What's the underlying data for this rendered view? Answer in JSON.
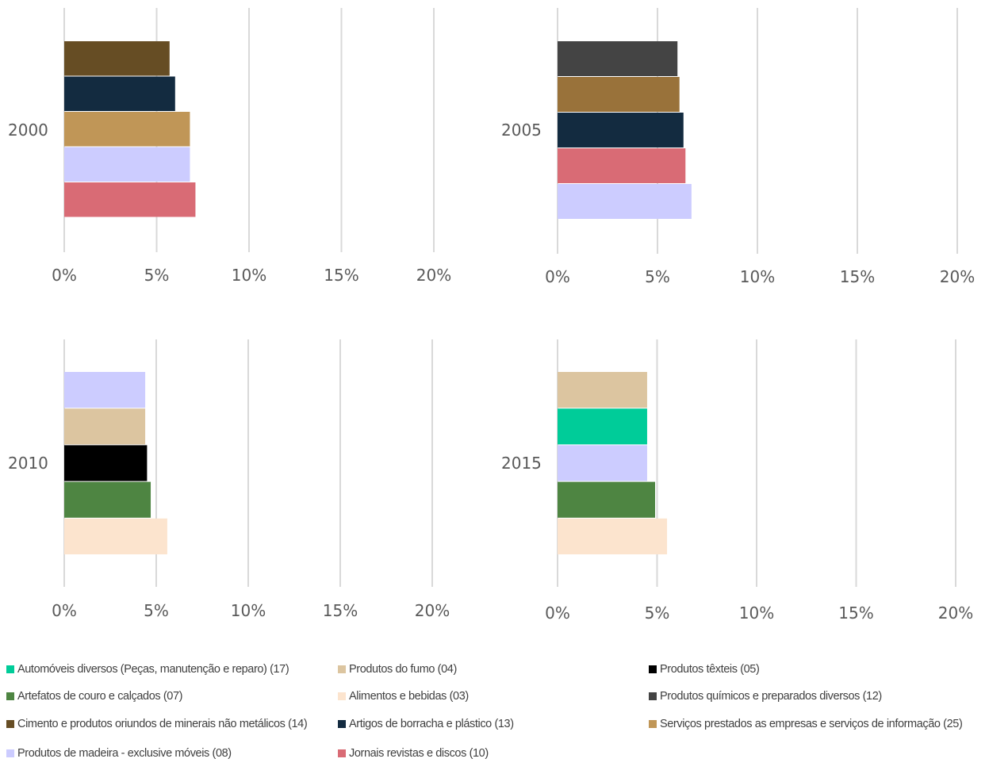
{
  "chart_data": [
    {
      "type": "bar",
      "orientation": "horizontal",
      "category": "2000",
      "xlim": [
        0,
        0.2
      ],
      "x_ticks": [
        "0%",
        "5%",
        "10%",
        "15%",
        "20%"
      ],
      "grid": true,
      "series": [
        {
          "name": "Cimento e produtos oriundos de minerais não metálicos (14)",
          "value": 0.057
        },
        {
          "name": "Artigos de borracha e plástico (13)",
          "value": 0.06
        },
        {
          "name": "Serviços prestados as empresas e serviços de informação (25)",
          "value": 0.068
        },
        {
          "name": "Produtos de madeira - exclusive móveis (08)",
          "value": 0.068
        },
        {
          "name": "Jornais revistas e discos (10)",
          "value": 0.071
        }
      ]
    },
    {
      "type": "bar",
      "orientation": "horizontal",
      "category": "2005",
      "xlim": [
        0,
        0.2
      ],
      "x_ticks": [
        "0%",
        "5%",
        "10%",
        "15%",
        "20%"
      ],
      "grid": true,
      "series": [
        {
          "name": "Produtos químicos e preparados diversos (12)",
          "value": 0.06
        },
        {
          "name": "Serviços prestados as empresas e serviços de informação (25)",
          "value": 0.061
        },
        {
          "name": "Artigos de borracha e plástico (13)",
          "value": 0.063
        },
        {
          "name": "Jornais revistas e discos (10)",
          "value": 0.064
        },
        {
          "name": "Produtos de madeira - exclusive móveis (08)",
          "value": 0.067
        }
      ]
    },
    {
      "type": "bar",
      "orientation": "horizontal",
      "category": "2010",
      "xlim": [
        0,
        0.2
      ],
      "x_ticks": [
        "0%",
        "5%",
        "10%",
        "15%",
        "20%"
      ],
      "grid": true,
      "series": [
        {
          "name": "Produtos de madeira - exclusive móveis (08)",
          "value": 0.044
        },
        {
          "name": "Produtos do fumo (04)",
          "value": 0.044
        },
        {
          "name": "Produtos têxteis (05)",
          "value": 0.045
        },
        {
          "name": "Artefatos de couro e calçados (07)",
          "value": 0.047
        },
        {
          "name": "Alimentos e bebidas (03)",
          "value": 0.056
        }
      ]
    },
    {
      "type": "bar",
      "orientation": "horizontal",
      "category": "2015",
      "xlim": [
        0,
        0.2
      ],
      "x_ticks": [
        "0%",
        "5%",
        "10%",
        "15%",
        "20%"
      ],
      "grid": true,
      "series": [
        {
          "name": "Produtos do fumo (04)",
          "value": 0.045
        },
        {
          "name": "Automóveis diversos (Peças, manutenção e reparo) (17)",
          "value": 0.045
        },
        {
          "name": "Produtos de madeira - exclusive móveis (08)",
          "value": 0.045
        },
        {
          "name": "Artefatos de couro e calçados (07)",
          "value": 0.049
        },
        {
          "name": "Alimentos e bebidas (03)",
          "value": 0.055
        }
      ]
    }
  ],
  "legend": [
    {
      "label": "Automóveis diversos (Peças, manutenção e reparo) (17)",
      "color": "#00CC99"
    },
    {
      "label": "Produtos do fumo (04)",
      "color": "#DCC5A0"
    },
    {
      "label": "Produtos têxteis (05)",
      "color": "#000000"
    },
    {
      "label": "Artefatos de couro e calçados (07)",
      "color": "#4E8542"
    },
    {
      "label": "Alimentos e bebidas (03)",
      "color": "#FCE4CE"
    },
    {
      "label": "Produtos químicos e preparados diversos (12)",
      "color": "#444444"
    },
    {
      "label": "Cimento e produtos oriundos de minerais não metálicos (14)",
      "color": "#664D24"
    },
    {
      "label": "Artigos de borracha e plástico (13)",
      "color": "#132B40"
    },
    {
      "label": "Serviços prestados as empresas e serviços de informação (25)",
      "color": "#C09657"
    },
    {
      "label": "Produtos de madeira - exclusive móveis (08)",
      "color": "#CCCCFF"
    },
    {
      "label": "Jornais revistas e discos (10)",
      "color": "#D96B75"
    }
  ],
  "series_colors_2005": {
    "Serviços prestados as empresas e serviços de informação (25)": "#99723A"
  }
}
